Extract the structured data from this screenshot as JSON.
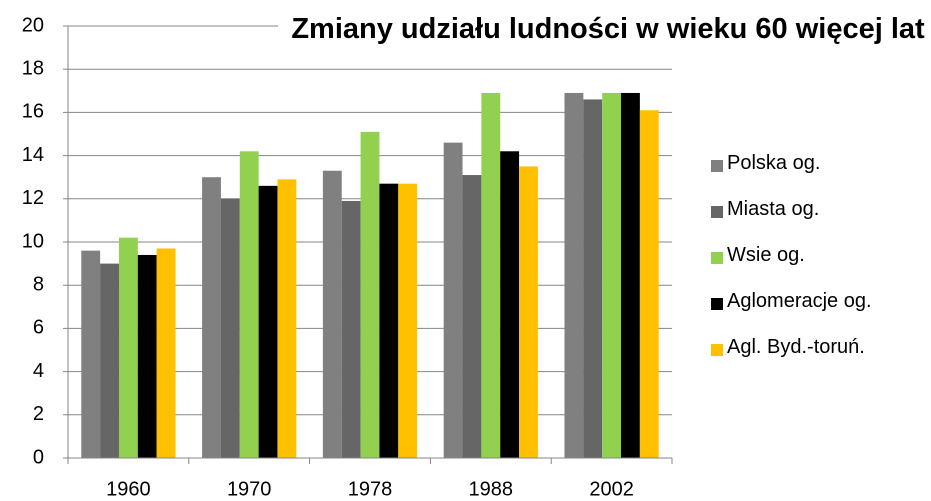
{
  "chart_data": {
    "type": "bar",
    "title": "Zmiany udziału ludności w wieku 60 więcej lat",
    "categories": [
      "1960",
      "1970",
      "1978",
      "1988",
      "2002"
    ],
    "series": [
      {
        "name": "Polska og.",
        "color": "#808080",
        "values": [
          9.6,
          13.0,
          13.3,
          14.6,
          16.9
        ]
      },
      {
        "name": "Miasta og.",
        "color": "#666666",
        "values": [
          9.0,
          12.0,
          11.9,
          13.1,
          16.6
        ]
      },
      {
        "name": "Wsie og.",
        "color": "#92d050",
        "values": [
          10.2,
          14.2,
          15.1,
          16.9,
          16.9
        ]
      },
      {
        "name": "Aglomeracje og.",
        "color": "#000000",
        "values": [
          9.4,
          12.6,
          12.7,
          14.2,
          16.9
        ]
      },
      {
        "name": "Agl. Byd.-toruń.",
        "color": "#ffc000",
        "values": [
          9.7,
          12.9,
          12.7,
          13.5,
          16.1
        ]
      }
    ],
    "ylim": [
      0,
      20
    ],
    "yticks": [
      0,
      2,
      4,
      6,
      8,
      10,
      12,
      14,
      16,
      18,
      20
    ],
    "grid": true,
    "legend": "right"
  }
}
